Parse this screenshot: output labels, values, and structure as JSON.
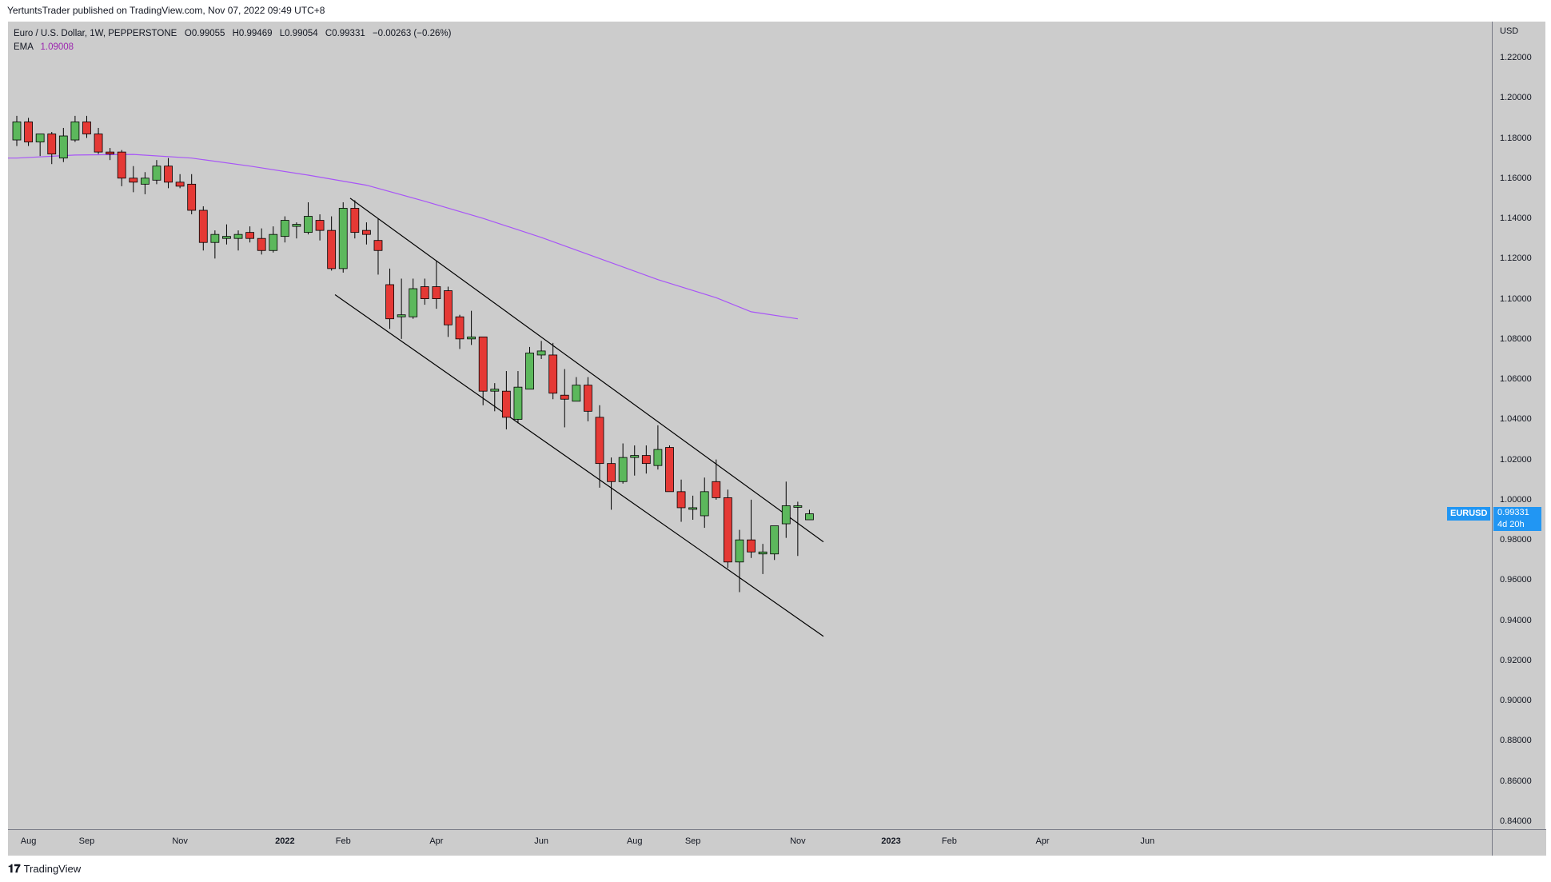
{
  "publish_line": "YertuntsTrader published on TradingView.com, Nov 07, 2022 09:49 UTC+8",
  "legend": {
    "symbol": "Euro / U.S. Dollar, 1W, PEPPERSTONE",
    "open": "O0.99055",
    "high": "H0.99469",
    "low": "L0.99054",
    "close": "C0.99331",
    "change": "−0.00263 (−0.26%)",
    "ema_label": "EMA",
    "ema_value": "1.09008"
  },
  "price_tag": {
    "symbol": "EURUSD",
    "price": "0.99331",
    "countdown": "4d 20h"
  },
  "footer": {
    "brand": "TradingView",
    "icon": "tradingview-logo-icon"
  },
  "colors": {
    "up": "#5cb85c",
    "down": "#e53935",
    "ema": "#a855f7",
    "background": "#cccccc",
    "tag": "#2196f3"
  },
  "chart_data": {
    "type": "candlestick",
    "symbol": "EURUSD",
    "interval": "1W",
    "currency": "USD",
    "ylim": [
      0.83,
      1.235
    ],
    "y_ticks": [
      "1.22000",
      "1.20000",
      "1.18000",
      "1.16000",
      "1.14000",
      "1.12000",
      "1.10000",
      "1.08000",
      "1.06000",
      "1.04000",
      "1.02000",
      "1.00000",
      "0.98000",
      "0.96000",
      "0.94000",
      "0.92000",
      "0.90000",
      "0.88000",
      "0.86000",
      "0.84000"
    ],
    "x_ticks": [
      {
        "label": "Aug",
        "i": 1
      },
      {
        "label": "Sep",
        "i": 6
      },
      {
        "label": "Nov",
        "i": 14
      },
      {
        "label": "2022",
        "i": 23,
        "year": true
      },
      {
        "label": "Feb",
        "i": 28
      },
      {
        "label": "Apr",
        "i": 36
      },
      {
        "label": "Jun",
        "i": 45
      },
      {
        "label": "Aug",
        "i": 53
      },
      {
        "label": "Sep",
        "i": 58
      },
      {
        "label": "Nov",
        "i": 67
      },
      {
        "label": "2023",
        "i": 75,
        "year": true
      },
      {
        "label": "Feb",
        "i": 80
      },
      {
        "label": "Apr",
        "i": 88
      },
      {
        "label": "Jun",
        "i": 97
      }
    ],
    "candles": [
      [
        1.179,
        1.191,
        1.176,
        1.188
      ],
      [
        1.188,
        1.19,
        1.176,
        1.178
      ],
      [
        1.178,
        1.181,
        1.171,
        1.182
      ],
      [
        1.182,
        1.183,
        1.167,
        1.172
      ],
      [
        1.17,
        1.185,
        1.168,
        1.181
      ],
      [
        1.179,
        1.191,
        1.178,
        1.188
      ],
      [
        1.188,
        1.191,
        1.18,
        1.182
      ],
      [
        1.182,
        1.185,
        1.172,
        1.173
      ],
      [
        1.173,
        1.175,
        1.169,
        1.172
      ],
      [
        1.173,
        1.174,
        1.156,
        1.16
      ],
      [
        1.16,
        1.166,
        1.153,
        1.158
      ],
      [
        1.157,
        1.163,
        1.152,
        1.16
      ],
      [
        1.159,
        1.169,
        1.157,
        1.166
      ],
      [
        1.166,
        1.17,
        1.155,
        1.158
      ],
      [
        1.158,
        1.162,
        1.155,
        1.156
      ],
      [
        1.157,
        1.162,
        1.142,
        1.144
      ],
      [
        1.144,
        1.146,
        1.124,
        1.128
      ],
      [
        1.128,
        1.134,
        1.12,
        1.132
      ],
      [
        1.13,
        1.137,
        1.127,
        1.131
      ],
      [
        1.13,
        1.134,
        1.124,
        1.132
      ],
      [
        1.133,
        1.136,
        1.128,
        1.13
      ],
      [
        1.13,
        1.135,
        1.122,
        1.124
      ],
      [
        1.124,
        1.136,
        1.123,
        1.132
      ],
      [
        1.131,
        1.141,
        1.128,
        1.139
      ],
      [
        1.136,
        1.138,
        1.13,
        1.137
      ],
      [
        1.133,
        1.148,
        1.132,
        1.141
      ],
      [
        1.139,
        1.142,
        1.129,
        1.134
      ],
      [
        1.134,
        1.141,
        1.114,
        1.115
      ],
      [
        1.115,
        1.148,
        1.113,
        1.145
      ],
      [
        1.145,
        1.149,
        1.13,
        1.133
      ],
      [
        1.134,
        1.138,
        1.127,
        1.132
      ],
      [
        1.129,
        1.14,
        1.112,
        1.124
      ],
      [
        1.107,
        1.115,
        1.085,
        1.09
      ],
      [
        1.091,
        1.11,
        1.08,
        1.092
      ],
      [
        1.091,
        1.11,
        1.09,
        1.105
      ],
      [
        1.106,
        1.11,
        1.097,
        1.1
      ],
      [
        1.106,
        1.119,
        1.095,
        1.1
      ],
      [
        1.104,
        1.106,
        1.081,
        1.087
      ],
      [
        1.091,
        1.092,
        1.075,
        1.08
      ],
      [
        1.08,
        1.094,
        1.077,
        1.081
      ],
      [
        1.081,
        1.081,
        1.047,
        1.054
      ],
      [
        1.054,
        1.058,
        1.044,
        1.055
      ],
      [
        1.054,
        1.064,
        1.035,
        1.041
      ],
      [
        1.04,
        1.064,
        1.038,
        1.056
      ],
      [
        1.055,
        1.076,
        1.055,
        1.073
      ],
      [
        1.072,
        1.079,
        1.07,
        1.074
      ],
      [
        1.072,
        1.078,
        1.05,
        1.053
      ],
      [
        1.052,
        1.065,
        1.036,
        1.05
      ],
      [
        1.049,
        1.061,
        1.049,
        1.057
      ],
      [
        1.057,
        1.061,
        1.039,
        1.044
      ],
      [
        1.041,
        1.047,
        1.006,
        1.018
      ],
      [
        1.018,
        1.021,
        0.995,
        1.009
      ],
      [
        1.009,
        1.028,
        1.008,
        1.021
      ],
      [
        1.021,
        1.027,
        1.012,
        1.022
      ],
      [
        1.022,
        1.027,
        1.013,
        1.018
      ],
      [
        1.017,
        1.037,
        1.015,
        1.025
      ],
      [
        1.026,
        1.027,
        1.004,
        1.004
      ],
      [
        1.004,
        1.01,
        0.989,
        0.996
      ],
      [
        0.996,
        1.002,
        0.99,
        0.996
      ],
      [
        0.992,
        1.011,
        0.986,
        1.004
      ],
      [
        1.009,
        1.02,
        1.0,
        1.001
      ],
      [
        1.001,
        1.005,
        0.966,
        0.969
      ],
      [
        0.969,
        0.985,
        0.954,
        0.98
      ],
      [
        0.98,
        1.0,
        0.971,
        0.974
      ],
      [
        0.973,
        0.978,
        0.963,
        0.974
      ],
      [
        0.973,
        0.987,
        0.97,
        0.987
      ],
      [
        0.988,
        1.009,
        0.981,
        0.997
      ],
      [
        0.997,
        0.999,
        0.972,
        0.997
      ],
      [
        0.99,
        0.995,
        0.99,
        0.993
      ]
    ],
    "ema_series": [
      [
        0,
        1.17
      ],
      [
        5,
        1.1715
      ],
      [
        10,
        1.1718
      ],
      [
        15,
        1.17
      ],
      [
        20,
        1.166
      ],
      [
        25,
        1.1615
      ],
      [
        30,
        1.1565
      ],
      [
        35,
        1.1485
      ],
      [
        40,
        1.14
      ],
      [
        45,
        1.1305
      ],
      [
        50,
        1.12
      ],
      [
        55,
        1.1095
      ],
      [
        60,
        1.1005
      ],
      [
        63,
        1.0935
      ],
      [
        67,
        1.09
      ]
    ],
    "trendlines": [
      {
        "name": "upper-channel-line",
        "p1": [
          28.6,
          1.15
        ],
        "p2": [
          69.2,
          0.979
        ]
      },
      {
        "name": "lower-channel-line",
        "p1": [
          27.3,
          1.102
        ],
        "p2": [
          69.2,
          0.932
        ]
      }
    ]
  }
}
